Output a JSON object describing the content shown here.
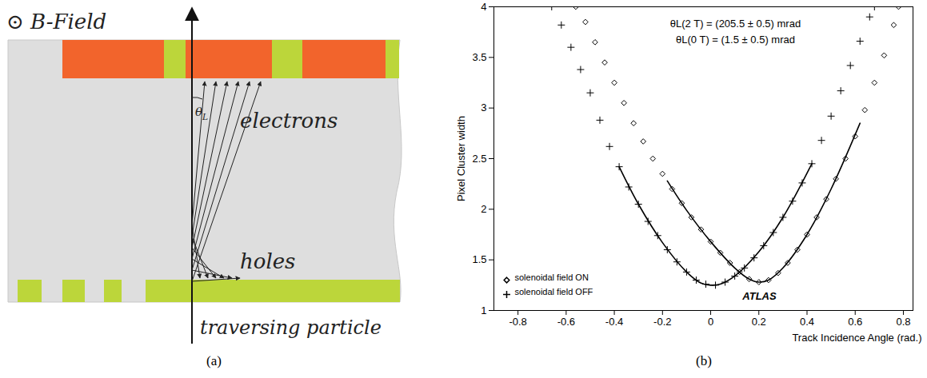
{
  "diagram": {
    "panel_label": "(a)",
    "field_label": "⊙ B-Field",
    "angle_label": "θL",
    "electrons_label": "electrons",
    "holes_label": "holes",
    "particle_label": "traversing particle"
  },
  "chart_data": {
    "panel_label": "(b)",
    "type": "scatter",
    "x_label": "Track Incidence Angle (rad.)",
    "y_label": "Pixel Cluster width",
    "annotations": [
      "θL(2 T) = (205.5 ± 0.5) mrad",
      "θL(0 T) = (1.5 ± 0.5) mrad",
      "ATLAS"
    ],
    "xlim": [
      -0.9,
      0.84
    ],
    "xticks": [
      -0.8,
      -0.6,
      -0.4,
      -0.2,
      0,
      0.2,
      0.4,
      0.6,
      0.8
    ],
    "ylim": [
      1,
      4
    ],
    "yticks": [
      1,
      1.5,
      2,
      2.5,
      3,
      3.5,
      4
    ],
    "legend": "bottom-left",
    "series": [
      {
        "name": "solenoidal field ON",
        "color": "#000000",
        "marker": "diamond",
        "x": [
          -0.56,
          -0.52,
          -0.48,
          -0.44,
          -0.4,
          -0.36,
          -0.32,
          -0.28,
          -0.24,
          -0.2,
          -0.16,
          -0.12,
          -0.08,
          -0.04,
          0.0,
          0.04,
          0.08,
          0.12,
          0.16,
          0.2,
          0.24,
          0.28,
          0.32,
          0.36,
          0.4,
          0.44,
          0.48,
          0.52,
          0.56,
          0.6,
          0.64,
          0.68,
          0.72,
          0.76,
          0.78
        ],
        "values": [
          4.0,
          3.85,
          3.65,
          3.45,
          3.25,
          3.05,
          2.85,
          2.67,
          2.5,
          2.35,
          2.2,
          2.06,
          1.92,
          1.8,
          1.68,
          1.57,
          1.47,
          1.38,
          1.31,
          1.28,
          1.3,
          1.37,
          1.47,
          1.6,
          1.75,
          1.92,
          2.1,
          2.3,
          2.5,
          2.72,
          2.98,
          3.25,
          3.52,
          3.82,
          4.0
        ],
        "fit": {
          "x": [
            -0.18,
            -0.1,
            0,
            0.1,
            0.16,
            0.2,
            0.24,
            0.3,
            0.4,
            0.5,
            0.62
          ],
          "values": [
            2.28,
            1.99,
            1.68,
            1.42,
            1.31,
            1.28,
            1.3,
            1.42,
            1.75,
            2.2,
            2.85
          ]
        }
      },
      {
        "name": "solenoidal field OFF",
        "color": "#000000",
        "marker": "plus",
        "x": [
          -0.66,
          -0.62,
          -0.58,
          -0.54,
          -0.5,
          -0.46,
          -0.42,
          -0.38,
          -0.34,
          -0.3,
          -0.26,
          -0.22,
          -0.18,
          -0.14,
          -0.1,
          -0.06,
          -0.02,
          0.02,
          0.06,
          0.1,
          0.14,
          0.18,
          0.22,
          0.26,
          0.3,
          0.34,
          0.38,
          0.42,
          0.46,
          0.5,
          0.54,
          0.58,
          0.62,
          0.66,
          0.68
        ],
        "values": [
          4.0,
          3.82,
          3.6,
          3.38,
          3.15,
          2.88,
          2.62,
          2.42,
          2.22,
          2.05,
          1.88,
          1.74,
          1.6,
          1.48,
          1.38,
          1.3,
          1.26,
          1.25,
          1.28,
          1.34,
          1.42,
          1.52,
          1.64,
          1.77,
          1.92,
          2.08,
          2.26,
          2.45,
          2.68,
          2.92,
          3.17,
          3.42,
          3.66,
          3.9,
          4.0
        ],
        "fit": {
          "x": [
            -0.38,
            -0.3,
            -0.2,
            -0.1,
            -0.04,
            0,
            0.04,
            0.1,
            0.2,
            0.3,
            0.42
          ],
          "values": [
            2.42,
            2.05,
            1.67,
            1.38,
            1.27,
            1.25,
            1.26,
            1.34,
            1.58,
            1.92,
            2.45
          ]
        }
      }
    ]
  }
}
